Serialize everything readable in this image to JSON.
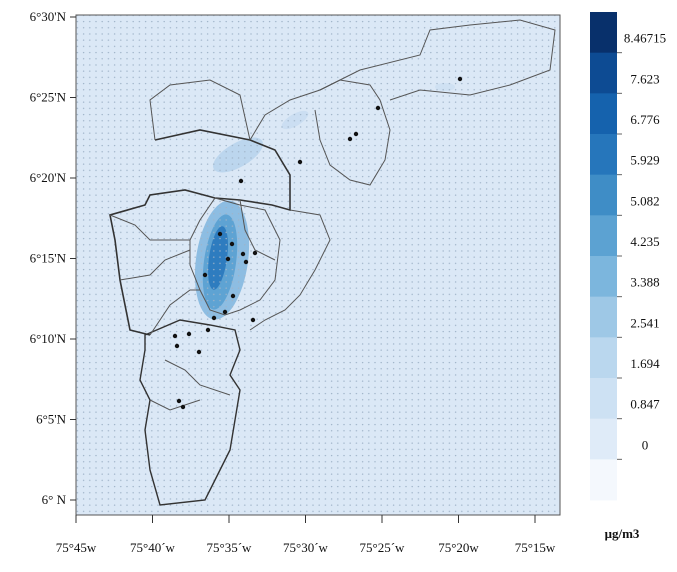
{
  "map": {
    "lat_ticks": [
      "6°30'N",
      "6°25'N",
      "6°20'N",
      "6°15'N",
      "6°10'N",
      "6°5'N",
      "6° N"
    ],
    "lon_ticks": [
      "75°45w",
      "75°40´w",
      "75°35´w",
      "75°30´w",
      "75°25´w",
      "75°20w",
      "75°15w"
    ],
    "colorbar": {
      "levels": [
        8.46715,
        7.623,
        6.776,
        5.929,
        5.082,
        4.235,
        3.388,
        2.541,
        1.694,
        0.847,
        0
      ],
      "colors": [
        "#08306b",
        "#0d4b93",
        "#1562ad",
        "#2676bb",
        "#3f8dc6",
        "#5ca2d2",
        "#7cb6dd",
        "#9ec8e6",
        "#bad7ee",
        "#cde1f3",
        "#dfebf8",
        "#f4f8fd"
      ],
      "unit": "μg/m3"
    }
  }
}
